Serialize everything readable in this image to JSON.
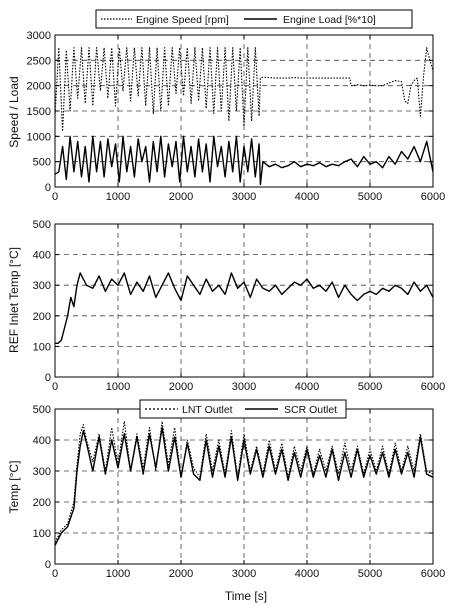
{
  "chart_data": [
    {
      "type": "line",
      "ylabel": "Speed / Load",
      "xlabel": "",
      "xlim": [
        0,
        6000
      ],
      "ylim": [
        0,
        3000
      ],
      "xticks": [
        0,
        1000,
        2000,
        3000,
        4000,
        5000,
        6000
      ],
      "yticks": [
        0,
        500,
        1000,
        1500,
        2000,
        2500,
        3000
      ],
      "grid": true,
      "legend_position": "top",
      "series": [
        {
          "name": "Engine Speed [rpm]",
          "style": "dotted",
          "x": [
            0,
            60,
            120,
            180,
            240,
            300,
            360,
            420,
            480,
            540,
            600,
            660,
            720,
            780,
            840,
            900,
            960,
            1020,
            1080,
            1140,
            1200,
            1260,
            1320,
            1380,
            1440,
            1500,
            1560,
            1620,
            1680,
            1740,
            1800,
            1860,
            1920,
            1980,
            2040,
            2100,
            2160,
            2220,
            2280,
            2340,
            2400,
            2460,
            2520,
            2580,
            2640,
            2700,
            2760,
            2820,
            2880,
            2940,
            3000,
            3060,
            3120,
            3180,
            3240,
            3260,
            3300,
            3400,
            3500,
            3600,
            3700,
            3800,
            3900,
            4000,
            4100,
            4200,
            4300,
            4400,
            4500,
            4600,
            4680,
            4700,
            4800,
            4900,
            5000,
            5100,
            5200,
            5300,
            5400,
            5500,
            5550,
            5600,
            5650,
            5700,
            5750,
            5800,
            5850,
            5900,
            5950,
            6000
          ],
          "y": [
            1400,
            2750,
            1100,
            2700,
            1500,
            2750,
            1750,
            2750,
            1650,
            2750,
            1600,
            2750,
            1900,
            2750,
            1750,
            2750,
            1600,
            2750,
            1900,
            2750,
            1700,
            2750,
            1800,
            2750,
            1600,
            2750,
            1450,
            2750,
            1500,
            2750,
            1600,
            2750,
            1850,
            2750,
            1800,
            2750,
            1650,
            2750,
            1700,
            2750,
            1550,
            2750,
            1450,
            2750,
            1500,
            2750,
            1300,
            2750,
            1500,
            2750,
            1200,
            2750,
            1300,
            2750,
            1400,
            2150,
            2170,
            2160,
            2150,
            2150,
            2150,
            2160,
            2150,
            2150,
            2150,
            2150,
            2150,
            2150,
            2150,
            2150,
            2150,
            2000,
            2020,
            2000,
            2010,
            2000,
            2000,
            2050,
            2100,
            2080,
            1700,
            1650,
            2000,
            2100,
            2150,
            1400,
            2200,
            2750,
            2500,
            2300
          ]
        },
        {
          "name": "Engine Load [%*10]",
          "style": "solid",
          "x": [
            0,
            60,
            120,
            180,
            240,
            300,
            360,
            420,
            480,
            540,
            600,
            660,
            720,
            780,
            840,
            900,
            960,
            1020,
            1080,
            1140,
            1200,
            1260,
            1320,
            1380,
            1440,
            1500,
            1560,
            1620,
            1680,
            1740,
            1800,
            1860,
            1920,
            1980,
            2040,
            2100,
            2160,
            2220,
            2280,
            2340,
            2400,
            2460,
            2520,
            2580,
            2640,
            2700,
            2760,
            2820,
            2880,
            2940,
            3000,
            3060,
            3120,
            3180,
            3240,
            3260,
            3300,
            3400,
            3500,
            3600,
            3700,
            3800,
            3900,
            4000,
            4100,
            4200,
            4300,
            4400,
            4500,
            4600,
            4700,
            4800,
            4900,
            5000,
            5100,
            5200,
            5300,
            5400,
            5500,
            5600,
            5700,
            5800,
            5900,
            6000
          ],
          "y": [
            250,
            300,
            800,
            150,
            1000,
            300,
            900,
            200,
            800,
            100,
            1000,
            300,
            900,
            200,
            950,
            400,
            850,
            100,
            1000,
            300,
            800,
            200,
            950,
            500,
            800,
            100,
            900,
            300,
            1000,
            200,
            850,
            400,
            900,
            100,
            1000,
            300,
            800,
            200,
            950,
            300,
            850,
            100,
            1000,
            400,
            800,
            200,
            900,
            300,
            1000,
            100,
            800,
            300,
            950,
            200,
            850,
            50,
            500,
            400,
            450,
            380,
            420,
            500,
            400,
            450,
            420,
            480,
            400,
            450,
            420,
            500,
            550,
            400,
            600,
            450,
            500,
            380,
            600,
            450,
            700,
            550,
            800,
            500,
            900,
            300
          ]
        }
      ]
    },
    {
      "type": "line",
      "ylabel": "REF Inlet Temp [°C]",
      "xlabel": "",
      "xlim": [
        0,
        6000
      ],
      "ylim": [
        0,
        500
      ],
      "xticks": [
        0,
        1000,
        2000,
        3000,
        4000,
        5000,
        6000
      ],
      "yticks": [
        0,
        100,
        200,
        300,
        400,
        500
      ],
      "grid": true,
      "series": [
        {
          "style": "solid",
          "x": [
            0,
            50,
            100,
            150,
            200,
            250,
            300,
            350,
            400,
            450,
            500,
            600,
            700,
            800,
            900,
            1000,
            1100,
            1200,
            1300,
            1400,
            1500,
            1600,
            1700,
            1800,
            1900,
            2000,
            2100,
            2200,
            2300,
            2400,
            2500,
            2600,
            2700,
            2800,
            2900,
            3000,
            3100,
            3200,
            3300,
            3400,
            3500,
            3600,
            3700,
            3800,
            3900,
            4000,
            4100,
            4200,
            4300,
            4400,
            4500,
            4600,
            4700,
            4800,
            4900,
            5000,
            5100,
            5200,
            5300,
            5400,
            5500,
            5600,
            5700,
            5800,
            5900,
            6000
          ],
          "y": [
            110,
            110,
            120,
            160,
            200,
            260,
            230,
            300,
            340,
            320,
            300,
            290,
            330,
            280,
            320,
            300,
            340,
            270,
            310,
            280,
            330,
            260,
            300,
            340,
            290,
            250,
            330,
            300,
            270,
            320,
            280,
            300,
            270,
            340,
            290,
            310,
            260,
            320,
            290,
            280,
            300,
            270,
            290,
            310,
            300,
            320,
            290,
            300,
            280,
            310,
            260,
            300,
            270,
            250,
            270,
            280,
            270,
            290,
            280,
            300,
            290,
            270,
            310,
            280,
            300,
            260
          ]
        }
      ]
    },
    {
      "type": "line",
      "ylabel": "Temp [°C]",
      "xlabel": "Time [s]",
      "xlim": [
        0,
        6000
      ],
      "ylim": [
        0,
        500
      ],
      "xticks": [
        0,
        1000,
        2000,
        3000,
        4000,
        5000,
        6000
      ],
      "yticks": [
        0,
        100,
        200,
        300,
        400,
        500
      ],
      "grid": true,
      "legend_position": "top",
      "series": [
        {
          "name": "LNT Outlet",
          "style": "dotted",
          "x": [
            0,
            100,
            200,
            300,
            350,
            400,
            450,
            500,
            600,
            700,
            800,
            900,
            1000,
            1100,
            1200,
            1300,
            1400,
            1500,
            1600,
            1700,
            1800,
            1900,
            2000,
            2100,
            2200,
            2300,
            2400,
            2500,
            2600,
            2700,
            2800,
            2900,
            3000,
            3100,
            3200,
            3300,
            3400,
            3500,
            3600,
            3700,
            3800,
            3900,
            4000,
            4100,
            4200,
            4300,
            4400,
            4500,
            4600,
            4700,
            4800,
            4900,
            5000,
            5100,
            5200,
            5300,
            5400,
            5500,
            5600,
            5700,
            5800,
            5900,
            6000
          ],
          "y": [
            70,
            110,
            130,
            200,
            320,
            420,
            450,
            400,
            330,
            420,
            300,
            440,
            320,
            460,
            300,
            420,
            310,
            440,
            300,
            460,
            320,
            440,
            280,
            400,
            310,
            280,
            420,
            300,
            400,
            290,
            430,
            280,
            420,
            300,
            380,
            290,
            400,
            300,
            390,
            280,
            380,
            300,
            380,
            290,
            370,
            300,
            380,
            290,
            390,
            300,
            380,
            290,
            370,
            300,
            380,
            290,
            390,
            300,
            380,
            300,
            420,
            300,
            290
          ]
        },
        {
          "name": "SCR Outlet",
          "style": "solid",
          "x": [
            0,
            100,
            200,
            300,
            350,
            400,
            450,
            500,
            600,
            700,
            800,
            900,
            1000,
            1100,
            1200,
            1300,
            1400,
            1500,
            1600,
            1700,
            1800,
            1900,
            2000,
            2100,
            2200,
            2300,
            2400,
            2500,
            2600,
            2700,
            2800,
            2900,
            3000,
            3100,
            3200,
            3300,
            3400,
            3500,
            3600,
            3700,
            3800,
            3900,
            4000,
            4100,
            4200,
            4300,
            4400,
            4500,
            4600,
            4700,
            4800,
            4900,
            5000,
            5100,
            5200,
            5300,
            5400,
            5500,
            5600,
            5700,
            5800,
            5900,
            6000
          ],
          "y": [
            60,
            100,
            120,
            180,
            300,
            380,
            430,
            390,
            300,
            410,
            290,
            400,
            310,
            420,
            300,
            410,
            290,
            420,
            310,
            440,
            300,
            410,
            280,
            390,
            290,
            270,
            400,
            280,
            380,
            280,
            410,
            270,
            400,
            290,
            370,
            280,
            380,
            290,
            370,
            270,
            360,
            280,
            370,
            280,
            350,
            280,
            370,
            270,
            360,
            280,
            370,
            280,
            350,
            290,
            360,
            280,
            370,
            290,
            360,
            280,
            410,
            290,
            280
          ]
        }
      ]
    }
  ],
  "legend_top": {
    "speed_label": "Engine Speed [rpm]",
    "load_label": "Engine Load [%*10]"
  },
  "legend_bottom": {
    "lnt_label": "LNT Outlet",
    "scr_label": "SCR Outlet"
  },
  "labels": {
    "top_ylabel": "Speed / Load",
    "mid_ylabel": "REF Inlet Temp [°C]",
    "bottom_ylabel": "Temp [°C]",
    "xlabel": "Time [s]"
  }
}
